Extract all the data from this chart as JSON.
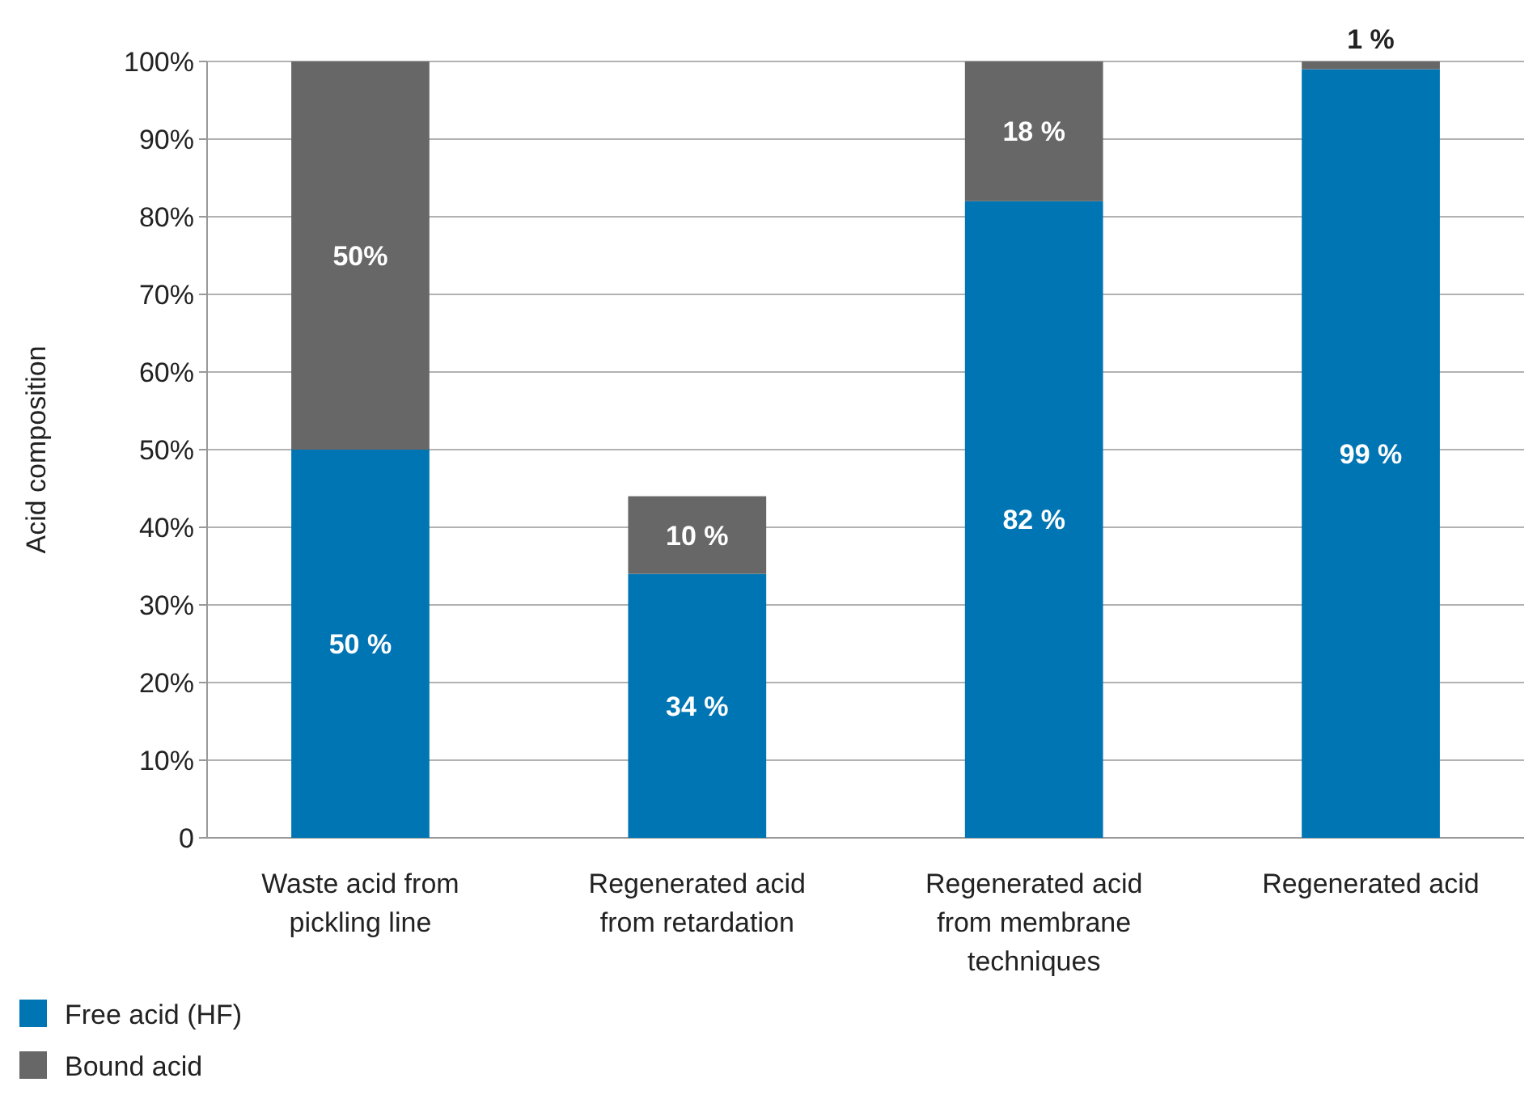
{
  "chart_data": {
    "type": "bar",
    "stacked": true,
    "ylabel": "Acid composition",
    "categories": [
      "Waste acid from pickling line",
      "Regenerated acid from retardation",
      "Regenerated acid from membrane techniques",
      "Regenerated acid"
    ],
    "series": [
      {
        "name": "Free acid (HF)",
        "color": "#0075b4",
        "values": [
          50,
          34,
          82,
          99
        ],
        "value_labels": [
          "50 %",
          "34 %",
          "82 %",
          "99 %"
        ]
      },
      {
        "name": "Bound acid",
        "color": "#676767",
        "values": [
          50,
          10,
          18,
          1
        ],
        "value_labels": [
          "50%",
          "10 %",
          "18 %",
          "1 %"
        ]
      }
    ],
    "ylim": [
      0,
      100
    ],
    "yticks": [
      0,
      {
        "value": 10,
        "label": "10%"
      },
      {
        "value": 20,
        "label": "20%"
      },
      {
        "value": 30,
        "label": "30%"
      },
      {
        "value": 40,
        "label": "40%"
      },
      {
        "value": 50,
        "label": "50%"
      },
      {
        "value": 60,
        "label": "60%"
      },
      {
        "value": 70,
        "label": "70%"
      },
      {
        "value": 80,
        "label": "80%"
      },
      {
        "value": 90,
        "label": "90%"
      },
      {
        "value": 100,
        "label": "100%"
      }
    ],
    "grid": "y",
    "legend": "bottom left"
  }
}
